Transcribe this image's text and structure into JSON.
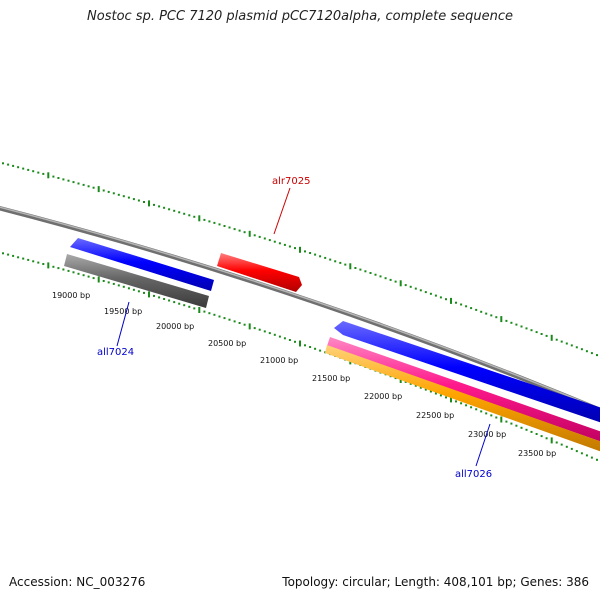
{
  "title": "Nostoc sp. PCC 7120 plasmid pCC7120alpha, complete sequence",
  "footer": {
    "accession": "Accession: NC_003276",
    "topology": "Topology: circular; Length: 408,101 bp; Genes: 386"
  },
  "ticks": [
    "19000 bp",
    "19500 bp",
    "20000 bp",
    "20500 bp",
    "21000 bp",
    "21500 bp",
    "22000 bp",
    "22500 bp",
    "23000 bp",
    "23500 bp"
  ],
  "genes": [
    {
      "name": "alr7025",
      "color": "#cc0000"
    },
    {
      "name": "all7024",
      "color": "#0000cc"
    },
    {
      "name": "all7026",
      "color": "#0000cc"
    }
  ],
  "colors": {
    "backbone": "#808080",
    "ticks": "#1a8a1a",
    "forward_gene": "#ff0000",
    "reverse_gene": "#0000ff",
    "gray_feature": "#666666",
    "magenta_feature": "#ff1a8c",
    "orange_feature": "#ffa500"
  }
}
